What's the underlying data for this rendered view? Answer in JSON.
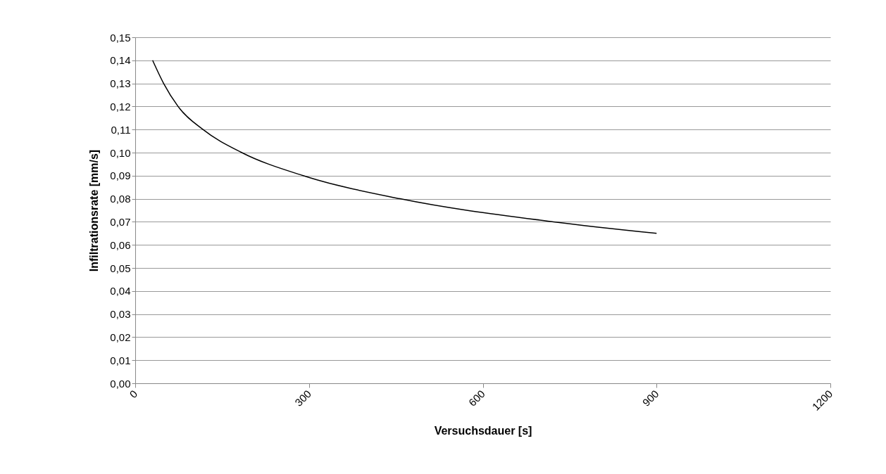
{
  "chart_data": {
    "type": "line",
    "xlabel": "Versuchsdauer [s]",
    "ylabel": "Infiltrationsrate [mm/s]",
    "x": [
      30,
      49,
      74,
      117,
      184,
      290,
      457,
      722,
      900
    ],
    "series": [
      {
        "color": "#000000",
        "values": [
          0.14,
          0.13,
          0.12,
          0.11,
          0.1,
          0.09,
          0.08,
          0.07,
          0.065
        ]
      }
    ],
    "xlim": [
      0,
      1200
    ],
    "xticks": [
      0,
      300,
      600,
      900,
      1200
    ],
    "ylim": [
      0,
      0.15
    ],
    "yticks": [
      {
        "value": 0,
        "label": "0,00"
      },
      {
        "value": 0.01,
        "label": "0,01"
      },
      {
        "value": 0.02,
        "label": "0,02"
      },
      {
        "value": 0.03,
        "label": "0,03"
      },
      {
        "value": 0.04,
        "label": "0,04"
      },
      {
        "value": 0.05,
        "label": "0,05"
      },
      {
        "value": 0.06,
        "label": "0,06"
      },
      {
        "value": 0.07,
        "label": "0,07"
      },
      {
        "value": 0.08,
        "label": "0,08"
      },
      {
        "value": 0.09,
        "label": "0,09"
      },
      {
        "value": 0.1,
        "label": "0,10"
      },
      {
        "value": 0.11,
        "label": "0,11"
      },
      {
        "value": 0.12,
        "label": "0,12"
      },
      {
        "value": 0.13,
        "label": "0,13"
      },
      {
        "value": 0.14,
        "label": "0,14"
      },
      {
        "value": 0.15,
        "label": "0,15"
      }
    ],
    "grid": "y",
    "marker": "none",
    "line_style": "solid"
  }
}
